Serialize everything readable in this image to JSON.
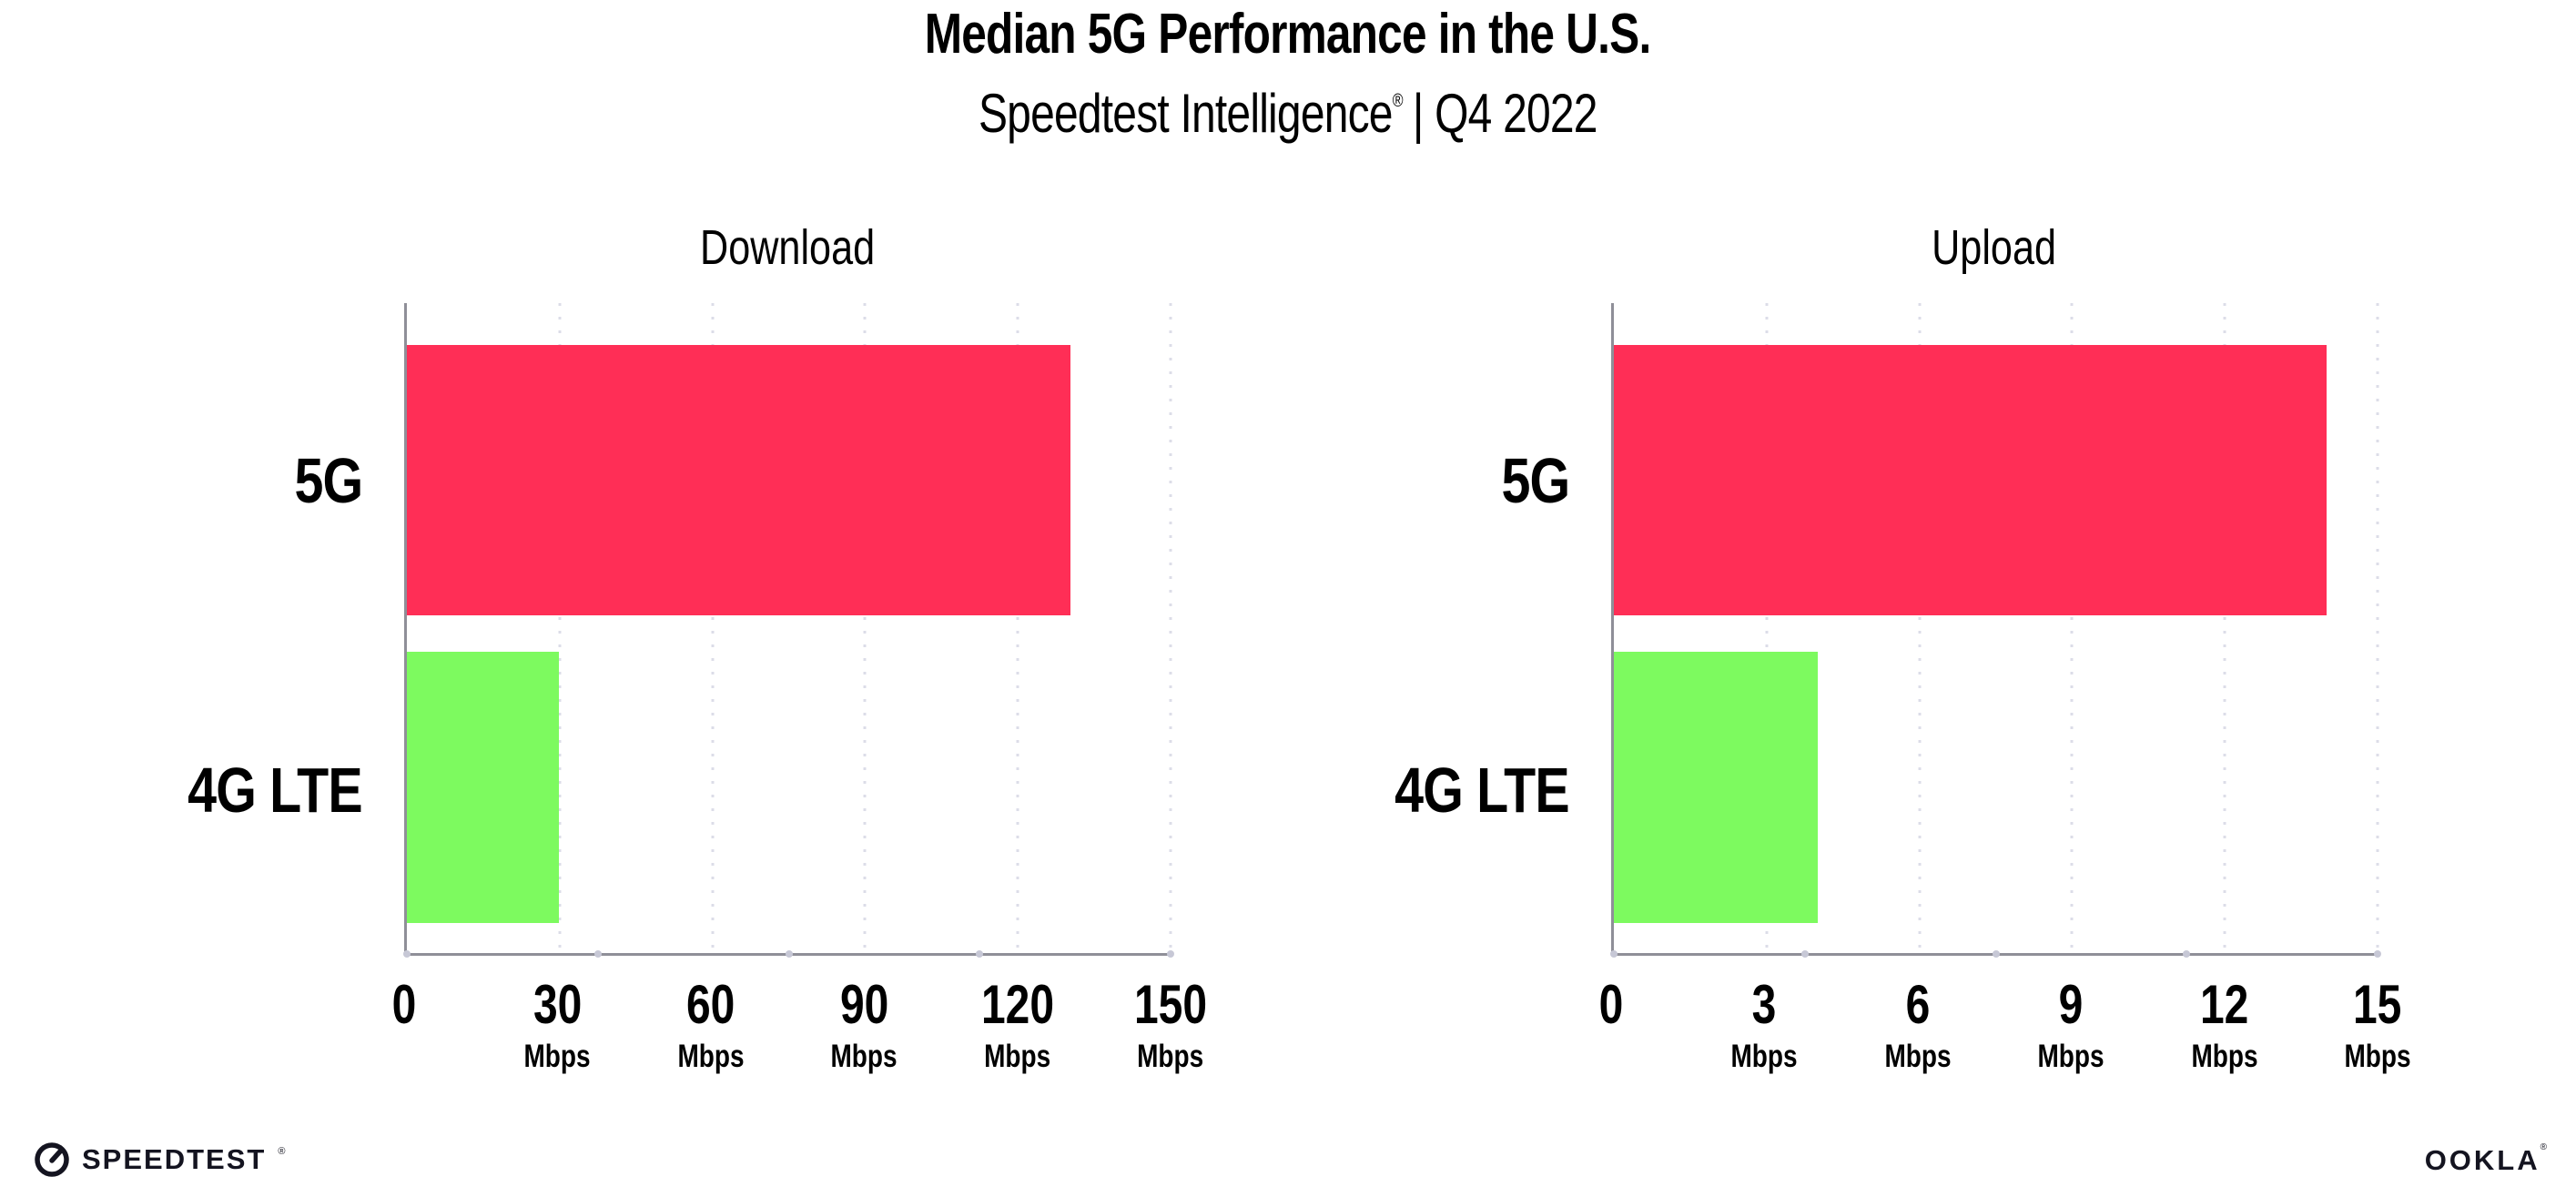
{
  "header": {
    "title": "Median 5G Performance in the U.S.",
    "subtitle_brand": "Speedtest Intelligence",
    "subtitle_registered_mark": "®",
    "subtitle_rest": "| Q4 2022"
  },
  "chart_data": [
    {
      "type": "bar",
      "orientation": "horizontal",
      "title": "Download",
      "categories": [
        "5G",
        "4G LTE"
      ],
      "values": [
        130.4,
        29.8
      ],
      "unit": "Mbps",
      "xlabel": "",
      "ylabel": "",
      "xlim": [
        0,
        150
      ],
      "xticks": [
        0,
        30,
        60,
        90,
        120,
        150
      ],
      "xtick_unit_label": "Mbps",
      "bar_colors": [
        "#FF2E56",
        "#7DFA5F"
      ],
      "grid": "dotted-vertical",
      "legend": "none"
    },
    {
      "type": "bar",
      "orientation": "horizontal",
      "title": "Upload",
      "categories": [
        "5G",
        "4G LTE"
      ],
      "values": [
        14.0,
        4.0
      ],
      "unit": "Mbps",
      "xlabel": "",
      "ylabel": "",
      "xlim": [
        0,
        15
      ],
      "xticks": [
        0,
        3,
        6,
        9,
        12,
        15
      ],
      "xtick_unit_label": "Mbps",
      "bar_colors": [
        "#FF2E56",
        "#7DFA5F"
      ],
      "grid": "dotted-vertical",
      "legend": "none"
    }
  ],
  "footer": {
    "speedtest_wordmark": "SPEEDTEST",
    "speedtest_mark": "®",
    "ookla_wordmark": "OOKLA",
    "ookla_mark": "®"
  },
  "colors": {
    "bar_5g": "#FF2E56",
    "bar_4g_lte": "#7DFA5F",
    "gridline": "#DCDDE8",
    "axis_spine": "#8F8F98",
    "text": "#000000"
  }
}
